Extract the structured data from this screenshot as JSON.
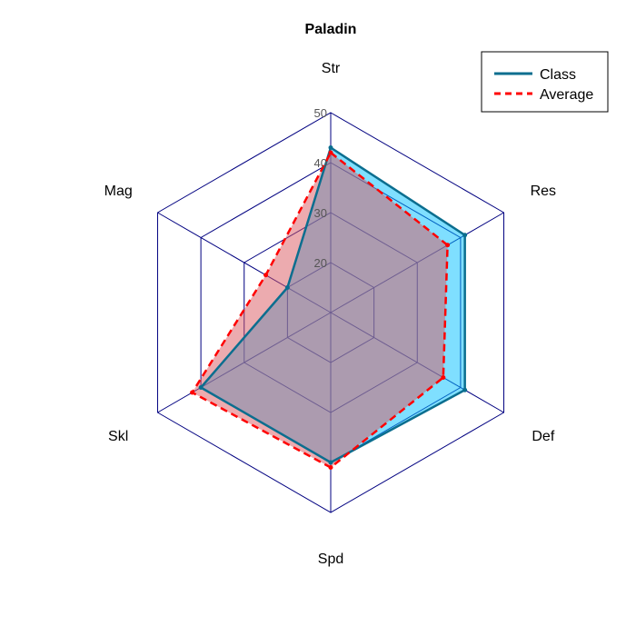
{
  "chart_data": {
    "type": "radar",
    "title": "Paladin",
    "axes": [
      "Str",
      "Res",
      "Def",
      "Spd",
      "Skl",
      "Mag"
    ],
    "rlim": [
      10,
      50
    ],
    "ticks": [
      20,
      30,
      40,
      50
    ],
    "grid": true,
    "legend_position": "top-right",
    "series": [
      {
        "name": "Class",
        "values": [
          43,
          41,
          41,
          40,
          40,
          20
        ],
        "line_color": "#0b6e8f",
        "fill_color": "#00bfff",
        "line_style": "solid"
      },
      {
        "name": "Average",
        "values": [
          42,
          37,
          36,
          41,
          42,
          25
        ],
        "line_color": "#ff0000",
        "fill_color": "#d9585f",
        "line_style": "dashed"
      }
    ],
    "grid_color": "#000080"
  }
}
